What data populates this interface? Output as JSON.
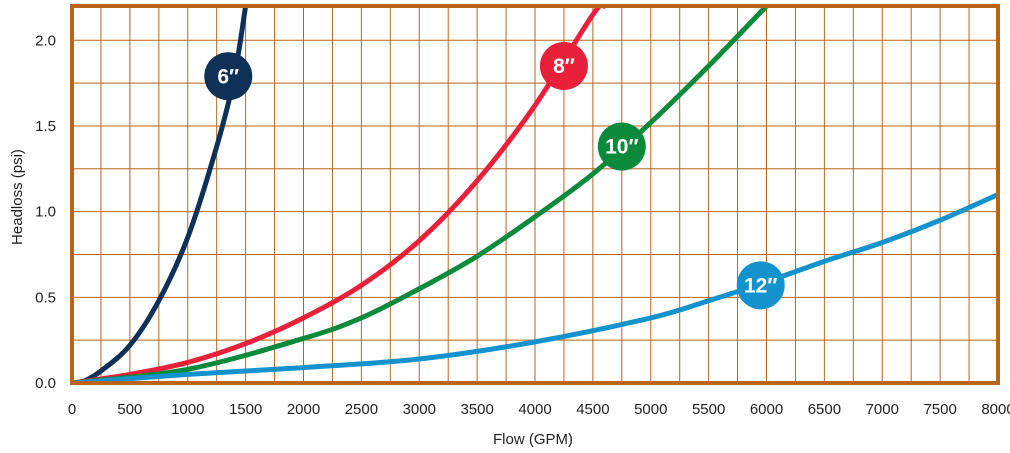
{
  "chart_data": {
    "type": "line",
    "xlabel": "Flow (GPM)",
    "ylabel": "Headloss (psi)",
    "xlim": [
      0,
      8000
    ],
    "ylim": [
      0,
      2.2
    ],
    "x_ticks": [
      "0",
      "500",
      "1000",
      "1500",
      "2000",
      "2500",
      "3000",
      "3500",
      "4000",
      "4500",
      "5000",
      "5500",
      "6000",
      "6500",
      "7000",
      "7500",
      "8000"
    ],
    "y_ticks": [
      "0.0",
      "0.5",
      "1.0",
      "1.5",
      "2.0"
    ],
    "grid": true,
    "frame_color": "#b8651b",
    "grid_color": "#b8651b",
    "series": [
      {
        "name": "6″",
        "color": "#0f3057",
        "label_point": [
          1350,
          1.79
        ],
        "x": [
          0,
          100,
          250,
          500,
          750,
          1000,
          1250,
          1400,
          1500
        ],
        "y": [
          0,
          0.01,
          0.07,
          0.22,
          0.48,
          0.85,
          1.38,
          1.78,
          2.2
        ]
      },
      {
        "name": "8″",
        "color": "#e8203a",
        "label_point": [
          4250,
          1.85
        ],
        "x": [
          0,
          500,
          1000,
          1500,
          2000,
          2500,
          3000,
          3500,
          4000,
          4500,
          4600
        ],
        "y": [
          0,
          0.05,
          0.12,
          0.23,
          0.38,
          0.57,
          0.83,
          1.18,
          1.62,
          2.15,
          2.2
        ]
      },
      {
        "name": "10″",
        "color": "#0b8a3c",
        "label_point": [
          4750,
          1.38
        ],
        "x": [
          0,
          1000,
          2000,
          2500,
          3000,
          3500,
          4000,
          4500,
          5000,
          5500,
          6000
        ],
        "y": [
          0,
          0.08,
          0.26,
          0.38,
          0.55,
          0.74,
          0.97,
          1.22,
          1.52,
          1.85,
          2.2
        ]
      },
      {
        "name": "12″",
        "color": "#1492cd",
        "label_point": [
          5950,
          0.57
        ],
        "x": [
          0,
          1000,
          2000,
          3000,
          4000,
          5000,
          5500,
          6000,
          6500,
          7000,
          7500,
          8000
        ],
        "y": [
          0,
          0.05,
          0.09,
          0.14,
          0.24,
          0.38,
          0.48,
          0.59,
          0.71,
          0.82,
          0.95,
          1.1
        ]
      }
    ]
  }
}
